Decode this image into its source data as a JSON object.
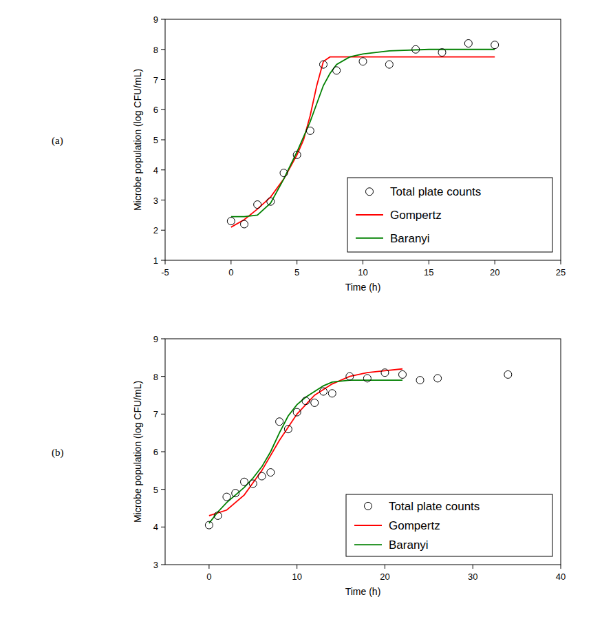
{
  "chart_data": [
    {
      "type": "line",
      "title": "(a)",
      "x_label": "Time (h)",
      "y_label": "Microbe population (log CFU/mL)",
      "xlim": [
        -5,
        25
      ],
      "xticks": [
        -5,
        0,
        5,
        10,
        15,
        20,
        25
      ],
      "ylim": [
        1,
        9
      ],
      "yticks": [
        1,
        2,
        3,
        4,
        5,
        6,
        7,
        8,
        9
      ],
      "grid": false,
      "legend": "lower right",
      "series": [
        {
          "name": "Total plate counts",
          "type": "scatter",
          "marker": "circle",
          "color": "#000000",
          "x": [
            0,
            1,
            2,
            3,
            4,
            5,
            6,
            7,
            8,
            10,
            12,
            14,
            16,
            18,
            20
          ],
          "values": [
            2.3,
            2.2,
            2.85,
            2.95,
            3.9,
            4.5,
            5.3,
            7.5,
            7.3,
            7.6,
            7.5,
            8.0,
            7.9,
            8.2,
            8.15
          ]
        },
        {
          "name": "Gompertz",
          "type": "line",
          "line_style": "solid",
          "color": "#ff0000",
          "x": [
            0,
            1,
            2,
            3,
            4,
            5,
            5.5,
            6,
            6.5,
            7,
            7.5,
            8,
            10,
            15,
            20
          ],
          "values": [
            2.1,
            2.35,
            2.7,
            3.1,
            3.7,
            4.5,
            5.0,
            5.8,
            6.8,
            7.6,
            7.75,
            7.75,
            7.75,
            7.75,
            7.75
          ]
        },
        {
          "name": "Baranyi",
          "type": "line",
          "line_style": "solid",
          "color": "#008000",
          "x": [
            0,
            1,
            2,
            3,
            4,
            5,
            6,
            7,
            7.5,
            8,
            9,
            10,
            12,
            15,
            20
          ],
          "values": [
            2.45,
            2.45,
            2.5,
            2.9,
            3.7,
            4.6,
            5.6,
            6.8,
            7.2,
            7.5,
            7.75,
            7.85,
            7.95,
            8.0,
            8.0
          ]
        }
      ]
    },
    {
      "type": "line",
      "title": "(b)",
      "x_label": "Time (h)",
      "y_label": "Microbe population (log CFU/mL)",
      "xlim": [
        -5,
        40
      ],
      "xticks": [
        0,
        10,
        20,
        30,
        40
      ],
      "ylim": [
        3,
        9
      ],
      "yticks": [
        3,
        4,
        5,
        6,
        7,
        8,
        9
      ],
      "grid": false,
      "legend": "lower right",
      "series": [
        {
          "name": "Total plate counts",
          "type": "scatter",
          "marker": "circle",
          "color": "#000000",
          "x": [
            0,
            1,
            2,
            3,
            4,
            5,
            6,
            7,
            8,
            9,
            10,
            11,
            12,
            13,
            14,
            16,
            18,
            20,
            22,
            24,
            26,
            34
          ],
          "values": [
            4.05,
            4.3,
            4.8,
            4.9,
            5.2,
            5.15,
            5.35,
            5.45,
            6.8,
            6.6,
            7.05,
            7.35,
            7.3,
            7.6,
            7.55,
            8.0,
            7.95,
            8.1,
            8.05,
            7.9,
            7.95,
            8.05
          ]
        },
        {
          "name": "Gompertz",
          "type": "line",
          "line_style": "solid",
          "color": "#ff0000",
          "x": [
            0,
            2,
            4,
            6,
            8,
            10,
            12,
            14,
            16,
            18,
            20,
            22
          ],
          "values": [
            4.3,
            4.45,
            4.85,
            5.5,
            6.3,
            7.0,
            7.5,
            7.8,
            8.0,
            8.1,
            8.15,
            8.2
          ]
        },
        {
          "name": "Baranyi",
          "type": "line",
          "line_style": "solid",
          "color": "#008000",
          "x": [
            0,
            1,
            2,
            3,
            4,
            5,
            6,
            7,
            8,
            9,
            10,
            11,
            12,
            13,
            14,
            16,
            22
          ],
          "values": [
            4.1,
            4.4,
            4.65,
            4.85,
            5.05,
            5.3,
            5.6,
            6.0,
            6.5,
            6.95,
            7.25,
            7.45,
            7.6,
            7.75,
            7.85,
            7.9,
            7.9
          ]
        }
      ]
    }
  ]
}
